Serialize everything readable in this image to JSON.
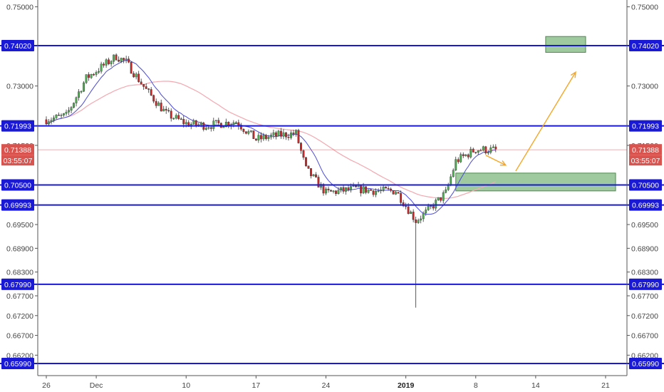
{
  "chart_data": {
    "type": "candlestick",
    "title": "",
    "xlabel": "",
    "ylabel": "",
    "ylim": [
      0.6565,
      0.753
    ],
    "y_ticks": [
      "0.75000",
      "0.73000",
      "0.71500",
      "0.69500",
      "0.68900",
      "0.68300",
      "0.67700",
      "0.67200",
      "0.66700",
      "0.66200"
    ],
    "x_ticks": [
      {
        "label": "26",
        "date": "2018-11-26"
      },
      {
        "label": "Dec",
        "date": "2018-12-01"
      },
      {
        "label": "10",
        "date": "2018-12-10"
      },
      {
        "label": "17",
        "date": "2018-12-17"
      },
      {
        "label": "24",
        "date": "2018-12-24"
      },
      {
        "label": "2019",
        "date": "2019-01-01",
        "bold": true
      },
      {
        "label": "8",
        "date": "2019-01-08"
      },
      {
        "label": "14",
        "date": "2019-01-14"
      },
      {
        "label": "21",
        "date": "2019-01-21"
      }
    ],
    "x_range": [
      "2018-11-26",
      "2019-01-21"
    ],
    "levels": [
      {
        "label": "0.74020",
        "value": 0.7402
      },
      {
        "label": "0.71993",
        "value": 0.71993
      },
      {
        "label": "0.70500",
        "value": 0.705
      },
      {
        "label": "0.69993",
        "value": 0.69993
      },
      {
        "label": "0.67990",
        "value": 0.6799
      },
      {
        "label": "0.65990",
        "value": 0.6599
      }
    ],
    "current_price": {
      "label": "0.71388",
      "value": 0.71388,
      "countdown": "03:55:07"
    },
    "price_path": [
      {
        "date": "2018-11-26",
        "price": 0.7215
      },
      {
        "date": "2018-11-28",
        "price": 0.7225
      },
      {
        "date": "2018-11-30",
        "price": 0.732
      },
      {
        "date": "2018-12-03",
        "price": 0.7375
      },
      {
        "date": "2018-12-04",
        "price": 0.736
      },
      {
        "date": "2018-12-06",
        "price": 0.729
      },
      {
        "date": "2018-12-08",
        "price": 0.723
      },
      {
        "date": "2018-12-10",
        "price": 0.7205
      },
      {
        "date": "2018-12-12",
        "price": 0.72
      },
      {
        "date": "2018-12-15",
        "price": 0.721
      },
      {
        "date": "2018-12-17",
        "price": 0.7165
      },
      {
        "date": "2018-12-19",
        "price": 0.7175
      },
      {
        "date": "2018-12-21",
        "price": 0.718
      },
      {
        "date": "2018-12-22",
        "price": 0.709
      },
      {
        "date": "2018-12-24",
        "price": 0.703
      },
      {
        "date": "2018-12-27",
        "price": 0.704
      },
      {
        "date": "2018-12-29",
        "price": 0.7035
      },
      {
        "date": "2018-12-31",
        "price": 0.7035
      },
      {
        "date": "2019-01-02",
        "price": 0.696
      },
      {
        "date": "2019-01-03",
        "price": 0.698
      },
      {
        "date": "2019-01-05",
        "price": 0.703
      },
      {
        "date": "2019-01-06",
        "price": 0.711
      },
      {
        "date": "2019-01-08",
        "price": 0.714
      },
      {
        "date": "2019-01-10",
        "price": 0.7138
      }
    ],
    "flash_crash": {
      "date": "2019-01-02",
      "low": 0.674
    },
    "zones": [
      {
        "from": "2019-01-15",
        "to": "2019-01-19",
        "low": 0.7385,
        "high": 0.7425
      },
      {
        "from": "2019-01-06",
        "to": "2019-01-22",
        "low": 0.7035,
        "high": 0.708
      }
    ],
    "arrows": [
      {
        "from": {
          "date": "2019-01-09",
          "price": 0.7125
        },
        "to": {
          "date": "2019-01-11",
          "price": 0.71
        }
      },
      {
        "from": {
          "date": "2019-01-12",
          "price": 0.7085
        },
        "to": {
          "date": "2019-01-18",
          "price": 0.7335
        }
      }
    ],
    "colors": {
      "bull": "#4caf50",
      "bear": "#c62828",
      "level_line": "#1a1ad6",
      "badge": "#1a1ad6",
      "price_badge": "#d9534f",
      "fast_ma": "#4b4bd8",
      "slow_ma": "#f4a8b0",
      "zone": "#7fb77f",
      "arrow": "#f5a623"
    },
    "grid": false
  }
}
